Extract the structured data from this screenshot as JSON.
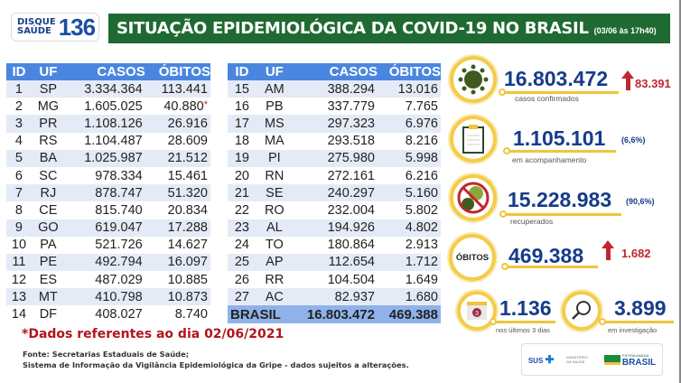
{
  "header": {
    "logo_top": "DISQUE",
    "logo_bottom": "SAÚDE",
    "logo_number": "136",
    "title": "SITUAÇÃO EPIDEMIOLÓGICA DA COVID-19 NO BRASIL",
    "datetime": "(03/06 às 17h40)"
  },
  "table": {
    "columns": [
      "ID",
      "UF",
      "CASOS",
      "ÓBITOS"
    ],
    "rows_left": [
      [
        "1",
        "SP",
        "3.334.364",
        "113.441"
      ],
      [
        "2",
        "MG",
        "1.605.025",
        "40.880"
      ],
      [
        "3",
        "PR",
        "1.108.126",
        "26.916"
      ],
      [
        "4",
        "RS",
        "1.104.487",
        "28.609"
      ],
      [
        "5",
        "BA",
        "1.025.987",
        "21.512"
      ],
      [
        "6",
        "SC",
        "978.334",
        "15.461"
      ],
      [
        "7",
        "RJ",
        "878.747",
        "51.320"
      ],
      [
        "8",
        "CE",
        "815.740",
        "20.834"
      ],
      [
        "9",
        "GO",
        "619.047",
        "17.288"
      ],
      [
        "10",
        "PA",
        "521.726",
        "14.627"
      ],
      [
        "11",
        "PE",
        "492.794",
        "16.097"
      ],
      [
        "12",
        "ES",
        "487.029",
        "10.885"
      ],
      [
        "13",
        "MT",
        "410.798",
        "10.873"
      ],
      [
        "14",
        "DF",
        "408.027",
        "8.740"
      ]
    ],
    "rows_right": [
      [
        "15",
        "AM",
        "388.294",
        "13.016"
      ],
      [
        "16",
        "PB",
        "337.779",
        "7.765"
      ],
      [
        "17",
        "MS",
        "297.323",
        "6.976"
      ],
      [
        "18",
        "MA",
        "293.518",
        "8.216"
      ],
      [
        "19",
        "PI",
        "275.980",
        "5.998"
      ],
      [
        "20",
        "RN",
        "272.161",
        "6.216"
      ],
      [
        "21",
        "SE",
        "240.297",
        "5.160"
      ],
      [
        "22",
        "RO",
        "232.004",
        "5.802"
      ],
      [
        "23",
        "AL",
        "194.926",
        "4.802"
      ],
      [
        "24",
        "TO",
        "180.864",
        "2.913"
      ],
      [
        "25",
        "AP",
        "112.654",
        "1.712"
      ],
      [
        "26",
        "RR",
        "104.504",
        "1.649"
      ],
      [
        "27",
        "AC",
        "82.937",
        "1.680"
      ]
    ],
    "asterisk": "*",
    "total": {
      "label": "BRASIL",
      "casos": "16.803.472",
      "obitos": "469.388"
    }
  },
  "stats": {
    "confirmed": {
      "value": "16.803.472",
      "label": "casos confirmados",
      "increase": "83.391"
    },
    "monitoring": {
      "value": "1.105.101",
      "pct": "(6,6%)",
      "label": "em acompanhamento"
    },
    "recovered": {
      "value": "15.228.983",
      "pct": "(90,6%)",
      "label": "recuperados"
    },
    "deaths": {
      "badge": "ÓBITOS",
      "value": "469.388",
      "increase": "1.682"
    },
    "last3": {
      "value": "1.136",
      "label": "nos últimos 3 dias",
      "calendar": "3"
    },
    "investigation": {
      "value": "3.899",
      "label": "em investigação"
    }
  },
  "footnote": "*Dados referentes ao dia 02/06/2021",
  "source": [
    "Fonte: Secretarias Estaduais de Saúde;",
    "Sistema de Informação da Vigilância Epidemiológica da Gripe - dados sujeitos a alterações."
  ],
  "footer_logos": {
    "sus": "SUS",
    "ministry": "MINISTÉRIO DA SAÚDE",
    "gov_top": "PÁTRIA AMADA",
    "gov": "BRASIL"
  },
  "colors": {
    "green": "#1e6a32",
    "blue": "#173b8a",
    "header_blue": "#4a86e0",
    "red": "#c0272d",
    "yellow": "#f3cc4a"
  }
}
